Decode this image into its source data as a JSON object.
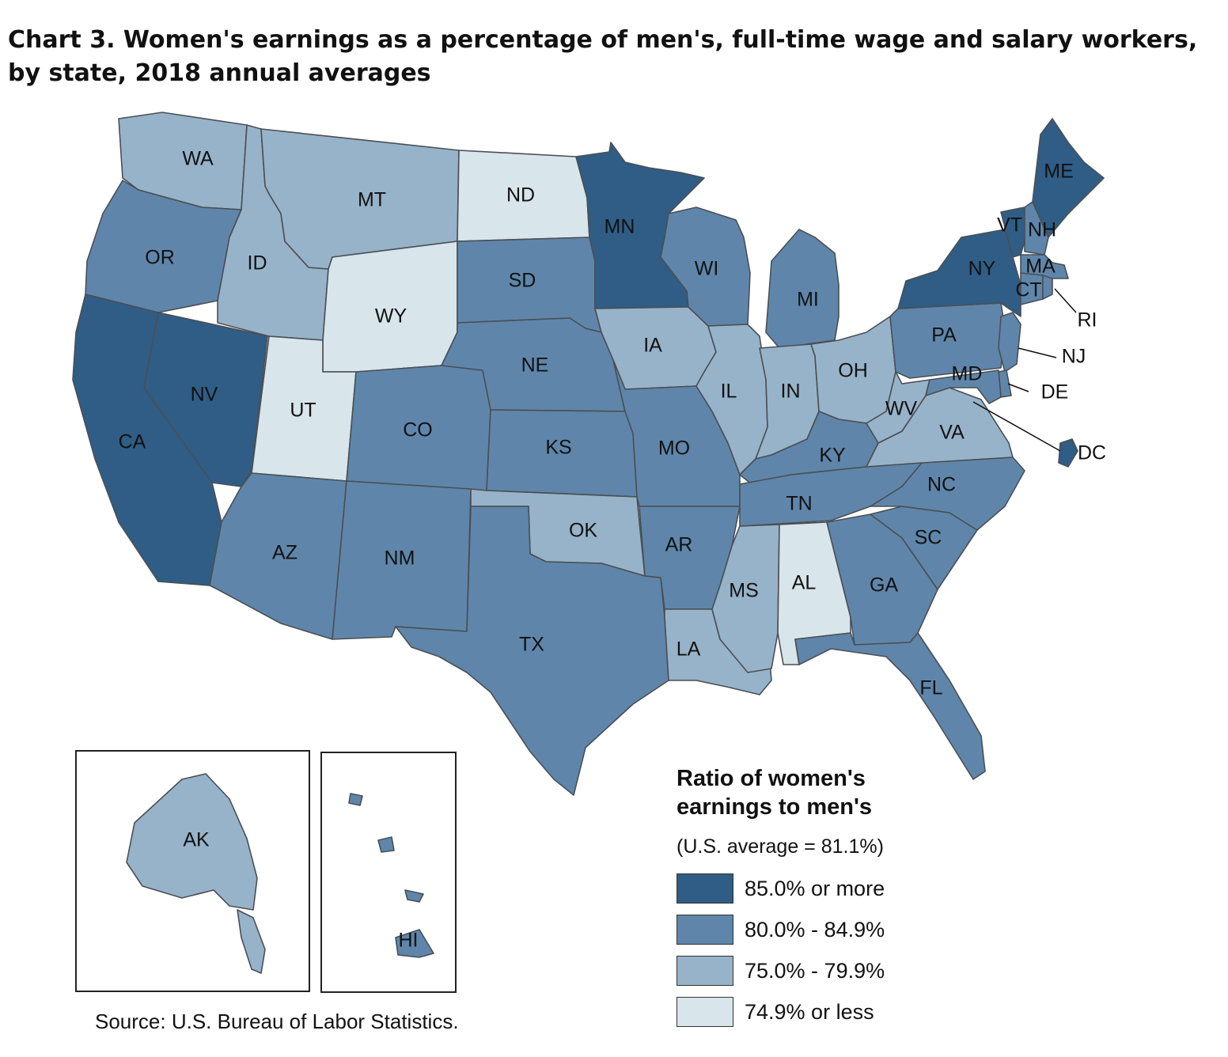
{
  "title": {
    "line1": "Chart 3. Women's earnings as a percentage of men's, full-time wage and salary workers,",
    "line2": "by state, 2018 annual averages"
  },
  "colors": {
    "c1": "#2f5d86",
    "c2": "#5f86aa",
    "c3": "#97b3c9",
    "c4": "#d8e5ea"
  },
  "legend": {
    "title_line1": "Ratio of women's",
    "title_line2": "earnings to men's",
    "note": "(U.S. average = 81.1%)",
    "items": [
      {
        "label": "85.0% or more",
        "color": "#2f5d86"
      },
      {
        "label": "80.0% - 84.9%",
        "color": "#5f86aa"
      },
      {
        "label": "75.0% - 79.9%",
        "color": "#97b3c9"
      },
      {
        "label": "74.9% or less",
        "color": "#d8e5ea"
      }
    ]
  },
  "states": [
    {
      "abbr": "WA",
      "category": "75.0% - 79.9%"
    },
    {
      "abbr": "OR",
      "category": "80.0% - 84.9%"
    },
    {
      "abbr": "CA",
      "category": "85.0% or more"
    },
    {
      "abbr": "NV",
      "category": "85.0% or more"
    },
    {
      "abbr": "ID",
      "category": "75.0% - 79.9%"
    },
    {
      "abbr": "MT",
      "category": "75.0% - 79.9%"
    },
    {
      "abbr": "WY",
      "category": "74.9% or less"
    },
    {
      "abbr": "UT",
      "category": "74.9% or less"
    },
    {
      "abbr": "AZ",
      "category": "80.0% - 84.9%"
    },
    {
      "abbr": "CO",
      "category": "80.0% - 84.9%"
    },
    {
      "abbr": "NM",
      "category": "80.0% - 84.9%"
    },
    {
      "abbr": "ND",
      "category": "74.9% or less"
    },
    {
      "abbr": "SD",
      "category": "80.0% - 84.9%"
    },
    {
      "abbr": "NE",
      "category": "80.0% - 84.9%"
    },
    {
      "abbr": "KS",
      "category": "80.0% - 84.9%"
    },
    {
      "abbr": "OK",
      "category": "75.0% - 79.9%"
    },
    {
      "abbr": "TX",
      "category": "80.0% - 84.9%"
    },
    {
      "abbr": "MN",
      "category": "85.0% or more"
    },
    {
      "abbr": "IA",
      "category": "75.0% - 79.9%"
    },
    {
      "abbr": "MO",
      "category": "80.0% - 84.9%"
    },
    {
      "abbr": "AR",
      "category": "80.0% - 84.9%"
    },
    {
      "abbr": "LA",
      "category": "75.0% - 79.9%"
    },
    {
      "abbr": "WI",
      "category": "80.0% - 84.9%"
    },
    {
      "abbr": "IL",
      "category": "75.0% - 79.9%"
    },
    {
      "abbr": "MI",
      "category": "80.0% - 84.9%"
    },
    {
      "abbr": "IN",
      "category": "75.0% - 79.9%"
    },
    {
      "abbr": "OH",
      "category": "75.0% - 79.9%"
    },
    {
      "abbr": "KY",
      "category": "80.0% - 84.9%"
    },
    {
      "abbr": "TN",
      "category": "80.0% - 84.9%"
    },
    {
      "abbr": "MS",
      "category": "75.0% - 79.9%"
    },
    {
      "abbr": "AL",
      "category": "74.9% or less"
    },
    {
      "abbr": "GA",
      "category": "80.0% - 84.9%"
    },
    {
      "abbr": "FL",
      "category": "80.0% - 84.9%"
    },
    {
      "abbr": "SC",
      "category": "80.0% - 84.9%"
    },
    {
      "abbr": "NC",
      "category": "80.0% - 84.9%"
    },
    {
      "abbr": "VA",
      "category": "75.0% - 79.9%"
    },
    {
      "abbr": "WV",
      "category": "75.0% - 79.9%"
    },
    {
      "abbr": "PA",
      "category": "80.0% - 84.9%"
    },
    {
      "abbr": "NY",
      "category": "85.0% or more"
    },
    {
      "abbr": "VT",
      "category": "85.0% or more"
    },
    {
      "abbr": "NH",
      "category": "80.0% - 84.9%"
    },
    {
      "abbr": "ME",
      "category": "85.0% or more"
    },
    {
      "abbr": "MA",
      "category": "80.0% - 84.9%"
    },
    {
      "abbr": "CT",
      "category": "80.0% - 84.9%"
    },
    {
      "abbr": "RI",
      "category": "80.0% - 84.9%"
    },
    {
      "abbr": "NJ",
      "category": "80.0% - 84.9%"
    },
    {
      "abbr": "DE",
      "category": "80.0% - 84.9%"
    },
    {
      "abbr": "MD",
      "category": "80.0% - 84.9%"
    },
    {
      "abbr": "DC",
      "category": "85.0% or more"
    },
    {
      "abbr": "AK",
      "category": "75.0% - 79.9%"
    },
    {
      "abbr": "HI",
      "category": "80.0% - 84.9%"
    }
  ],
  "source": "Source: U.S. Bureau of Labor Statistics."
}
